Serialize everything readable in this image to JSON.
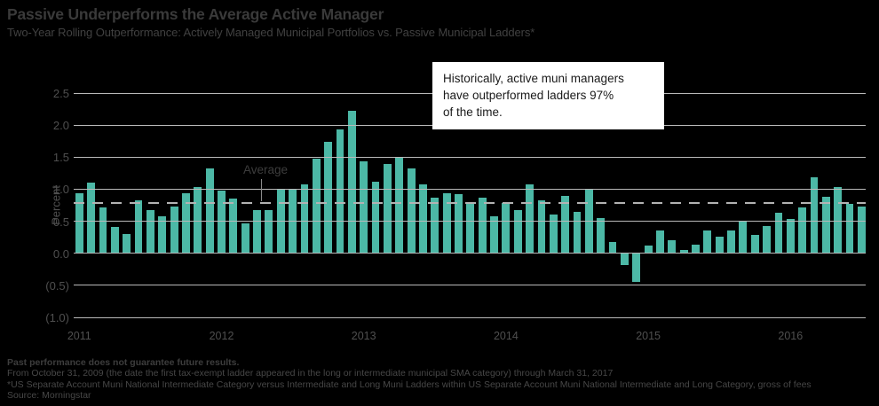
{
  "header": {
    "title": "Passive Underperforms the Average Active Manager",
    "subtitle": "Two-Year Rolling Outperformance: Actively Managed Municipal Portfolios vs. Passive Municipal Ladders*"
  },
  "annotation": {
    "lines": [
      "Historically, active muni managers",
      "have outperformed ladders 97%",
      "of the time."
    ]
  },
  "chart_data": {
    "type": "bar",
    "title": "Passive Underperforms the Average Active Manager",
    "subtitle": "Two-Year Rolling Outperformance: Actively Managed Municipal Portfolios vs. Passive Municipal Ladders*",
    "xlabel": "",
    "ylabel": "Percent",
    "ylim": [
      -1.0,
      2.5
    ],
    "grid": true,
    "bar_color": "#4cb8a6",
    "average_line": {
      "label": "Average",
      "value": 0.79,
      "style": "dashed"
    },
    "y_ticks": [
      {
        "label": "2.5",
        "value": 2.5
      },
      {
        "label": "2.0",
        "value": 2.0
      },
      {
        "label": "1.5",
        "value": 1.5
      },
      {
        "label": "1.0",
        "value": 1.0
      },
      {
        "label": "0.5",
        "value": 0.5
      },
      {
        "label": "0.0",
        "value": 0.0
      },
      {
        "label": "(0.5)",
        "value": -0.5
      },
      {
        "label": "(1.0)",
        "value": -1.0
      }
    ],
    "x_year_ticks": [
      "2011",
      "2012",
      "2013",
      "2014",
      "2015",
      "2016"
    ],
    "categories": [
      "2011-01",
      "2011-02",
      "2011-03",
      "2011-04",
      "2011-05",
      "2011-06",
      "2011-07",
      "2011-08",
      "2011-09",
      "2011-10",
      "2011-11",
      "2011-12",
      "2012-01",
      "2012-02",
      "2012-03",
      "2012-04",
      "2012-05",
      "2012-06",
      "2012-07",
      "2012-08",
      "2012-09",
      "2012-10",
      "2012-11",
      "2012-12",
      "2013-01",
      "2013-02",
      "2013-03",
      "2013-04",
      "2013-05",
      "2013-06",
      "2013-07",
      "2013-08",
      "2013-09",
      "2013-10",
      "2013-11",
      "2013-12",
      "2014-01",
      "2014-02",
      "2014-03",
      "2014-04",
      "2014-05",
      "2014-06",
      "2014-07",
      "2014-08",
      "2014-09",
      "2014-10",
      "2014-11",
      "2014-12",
      "2015-01",
      "2015-02",
      "2015-03",
      "2015-04",
      "2015-05",
      "2015-06",
      "2015-07",
      "2015-08",
      "2015-09",
      "2015-10",
      "2015-11",
      "2015-12",
      "2016-01",
      "2016-02",
      "2016-03",
      "2016-04",
      "2016-05",
      "2016-06",
      "2016-07"
    ],
    "values": [
      0.93,
      1.1,
      0.71,
      0.41,
      0.3,
      0.82,
      0.67,
      0.58,
      0.73,
      0.93,
      1.04,
      1.33,
      0.98,
      0.85,
      0.47,
      0.67,
      0.68,
      1.0,
      1.0,
      1.07,
      1.47,
      1.74,
      1.93,
      2.22,
      1.44,
      1.11,
      1.4,
      1.51,
      1.33,
      1.07,
      0.87,
      0.93,
      0.92,
      0.79,
      0.87,
      0.58,
      0.79,
      0.67,
      1.08,
      0.82,
      0.6,
      0.89,
      0.64,
      0.99,
      0.55,
      0.17,
      -0.19,
      -0.44,
      0.12,
      0.35,
      0.2,
      0.05,
      0.14,
      0.35,
      0.26,
      0.36,
      0.5,
      0.29,
      0.42,
      0.63,
      0.54,
      0.71,
      1.19,
      0.88,
      1.04,
      0.77,
      0.73
    ]
  },
  "footer": {
    "lines": [
      "Past performance does not guarantee future results.",
      "From October 31, 2009 (the date the first tax-exempt ladder appeared in the long or intermediate municipal SMA category) through March 31, 2017",
      "*US Separate Account Muni National Intermediate Category versus Intermediate and Long Muni Ladders within US Separate Account Muni National Intermediate and Long Category, gross of fees",
      "Source: Morningstar"
    ]
  }
}
